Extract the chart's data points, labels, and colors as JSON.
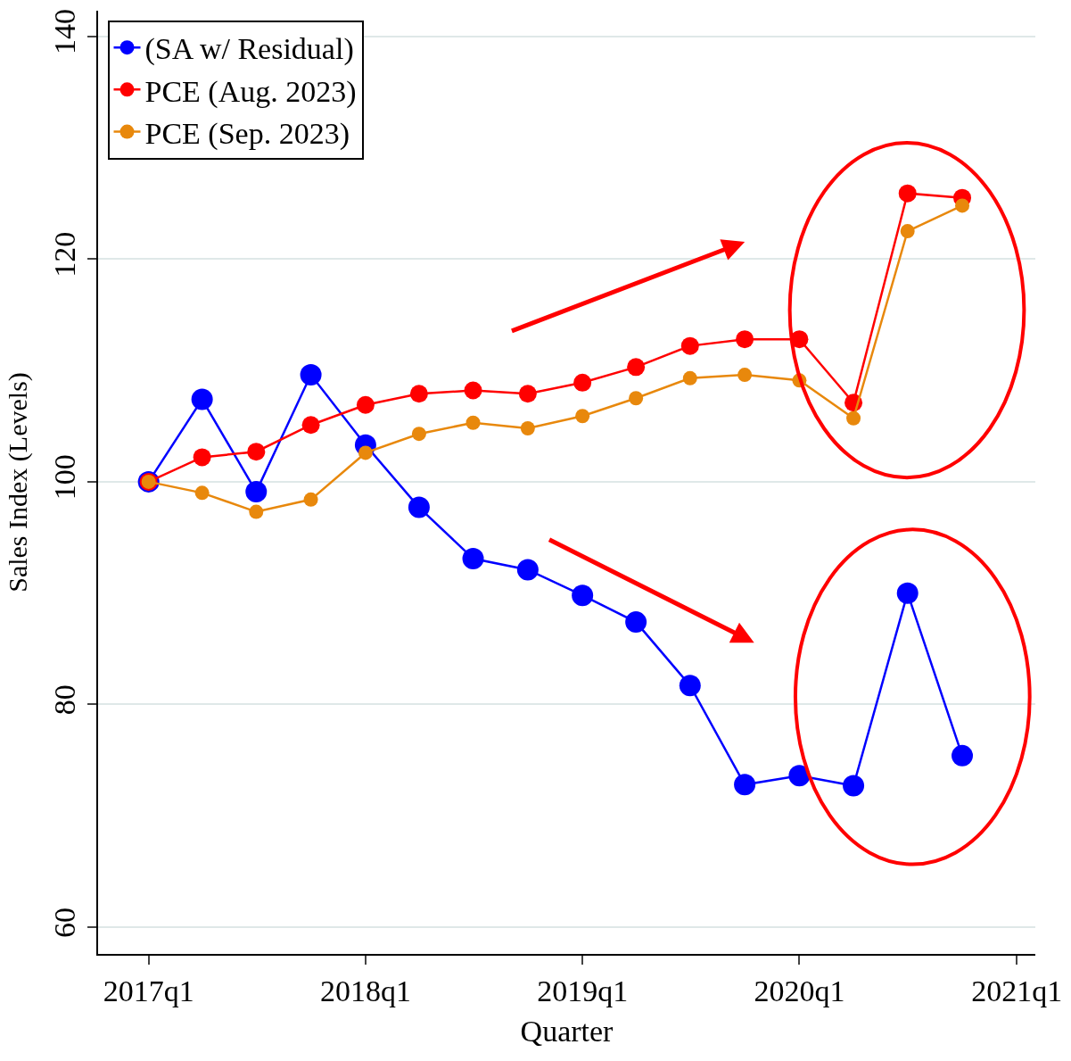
{
  "chart_data": {
    "type": "line",
    "xlabel": "Quarter",
    "ylabel": "Sales Index (Levels)",
    "x": [
      "2017-01",
      "2017-04",
      "2017-07",
      "2017-10",
      "2018-01",
      "2018-04",
      "2018-07",
      "2018-10",
      "2019-01",
      "2019-04",
      "2019-07",
      "2019-10",
      "2020-01",
      "2020-04",
      "2020-07",
      "2020-10"
    ],
    "series": [
      {
        "name": "(SA w/ Residual)",
        "color": "#0000ff",
        "values": [
          100,
          107.4,
          99.1,
          109.6,
          103.3,
          97.7,
          93.1,
          92.1,
          89.8,
          87.4,
          81.7,
          72.8,
          73.6,
          72.7,
          90.0,
          75.4
        ]
      },
      {
        "name": "PCE (Aug. 2023)",
        "color": "#ff0000",
        "values": [
          100,
          102.2,
          102.7,
          105.1,
          106.9,
          107.9,
          108.2,
          107.9,
          108.9,
          110.3,
          112.2,
          112.8,
          112.8,
          107.1,
          125.9,
          125.5
        ]
      },
      {
        "name": "PCE (Sep. 2023)",
        "color": "#e8880c",
        "values": [
          100,
          99.0,
          97.3,
          98.4,
          102.6,
          104.3,
          105.3,
          104.8,
          105.9,
          107.5,
          109.3,
          109.6,
          109.1,
          105.7,
          122.5,
          124.8
        ]
      }
    ],
    "xlim": [
      "2016-10-08",
      "2021-02-01"
    ],
    "xticks": [
      {
        "value": "2017-01",
        "label": "2017q1"
      },
      {
        "value": "2018-01",
        "label": "2018q1"
      },
      {
        "value": "2019-01",
        "label": "2019q1"
      },
      {
        "value": "2020-01",
        "label": "2020q1"
      },
      {
        "value": "2021-01",
        "label": "2021q1"
      }
    ],
    "ylim": [
      57.6,
      142.3
    ],
    "yticks": [
      60,
      80,
      100,
      120,
      140
    ],
    "grid": "y",
    "legend": "top left",
    "marker": "circle",
    "line_style": "solid"
  }
}
